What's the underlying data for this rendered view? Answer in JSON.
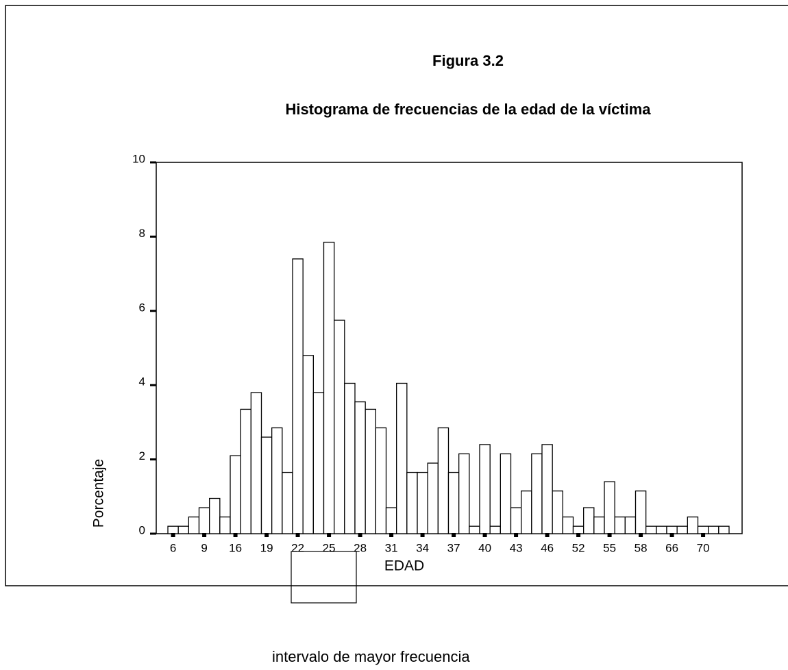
{
  "chart_data": {
    "type": "bar",
    "title": "Figura 3.2",
    "subtitle": "Histograma de frecuencias de la edad de la víctima",
    "xlabel": "EDAD",
    "ylabel": "Porcentaje",
    "annotation": "intervalo de mayor frecuencia",
    "color": "#ffffff",
    "edgecolor": "#000000",
    "categories": [
      "6",
      null,
      null,
      "9",
      null,
      null,
      "16",
      null,
      null,
      "19",
      null,
      null,
      "22",
      null,
      null,
      "25",
      null,
      null,
      "28",
      null,
      null,
      "31",
      null,
      null,
      "34",
      null,
      null,
      "37",
      null,
      null,
      "40",
      null,
      null,
      "43",
      null,
      null,
      "46",
      null,
      null,
      "52",
      null,
      null,
      "55",
      null,
      null,
      "58",
      null,
      null,
      "66",
      null,
      null,
      "70",
      null,
      null
    ],
    "values": [
      0.2,
      0.2,
      0.45,
      0.7,
      0.95,
      0.45,
      2.1,
      3.35,
      3.8,
      2.6,
      2.85,
      1.65,
      7.4,
      4.8,
      3.8,
      7.85,
      5.75,
      4.05,
      3.55,
      3.35,
      2.85,
      0.7,
      4.05,
      1.65,
      1.65,
      1.9,
      2.85,
      1.65,
      2.15,
      0.2,
      2.4,
      0.2,
      2.15,
      0.7,
      1.15,
      2.15,
      2.4,
      1.15,
      0.45,
      0.2,
      0.7,
      0.45,
      1.4,
      0.45,
      0.45,
      1.15,
      0.2,
      0.2,
      0.2,
      0.2,
      0.45,
      0.2,
      0.2,
      0.2
    ],
    "ylim": [
      0,
      10
    ],
    "yticks": [
      0,
      2,
      4,
      6,
      8,
      10
    ]
  }
}
